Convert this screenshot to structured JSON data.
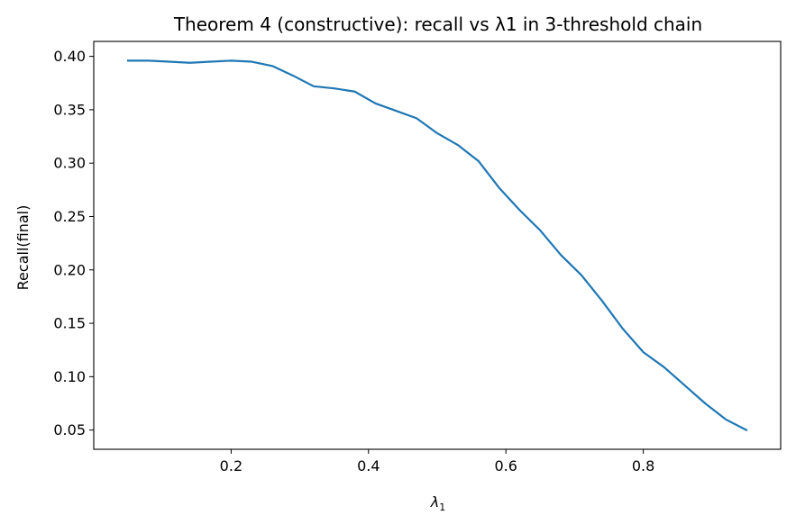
{
  "chart_data": {
    "type": "line",
    "title": "Theorem 4 (constructive): recall vs λ1 in 3-threshold chain",
    "xlabel": {
      "base": "λ",
      "subscript": "1"
    },
    "ylabel": "Recall(final)",
    "xlim": [
      0.0,
      1.0
    ],
    "ylim": [
      0.032,
      0.414
    ],
    "xticks": [
      0.2,
      0.4,
      0.6,
      0.8
    ],
    "xtick_labels": [
      "0.2",
      "0.4",
      "0.6",
      "0.8"
    ],
    "yticks": [
      0.05,
      0.1,
      0.15,
      0.2,
      0.25,
      0.3,
      0.35,
      0.4
    ],
    "ytick_labels": [
      "0.05",
      "0.10",
      "0.15",
      "0.20",
      "0.25",
      "0.30",
      "0.35",
      "0.40"
    ],
    "grid": false,
    "legend": "none",
    "series": [
      {
        "color": "#1f77b4",
        "x": [
          0.05,
          0.08,
          0.11,
          0.14,
          0.17,
          0.2,
          0.23,
          0.26,
          0.29,
          0.32,
          0.35,
          0.38,
          0.41,
          0.44,
          0.47,
          0.5,
          0.53,
          0.56,
          0.59,
          0.62,
          0.65,
          0.68,
          0.71,
          0.74,
          0.77,
          0.8,
          0.83,
          0.86,
          0.89,
          0.92,
          0.95
        ],
        "values": [
          0.396,
          0.396,
          0.395,
          0.394,
          0.395,
          0.396,
          0.395,
          0.391,
          0.382,
          0.372,
          0.37,
          0.367,
          0.356,
          0.349,
          0.342,
          0.328,
          0.317,
          0.302,
          0.277,
          0.256,
          0.237,
          0.214,
          0.195,
          0.171,
          0.145,
          0.123,
          0.109,
          0.092,
          0.075,
          0.06,
          0.05
        ]
      }
    ]
  }
}
